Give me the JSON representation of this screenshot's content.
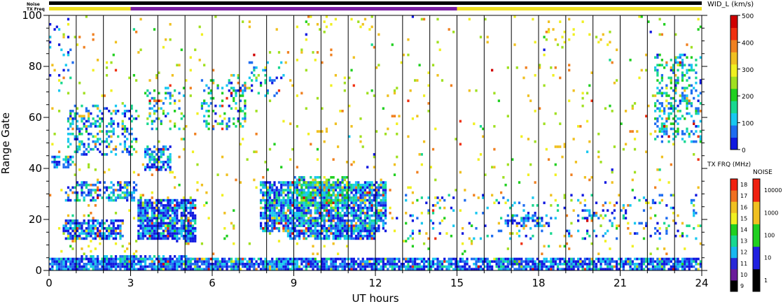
{
  "chart_data": {
    "type": "heatmap",
    "title": "",
    "xlabel": "UT hours",
    "ylabel": "Range Gate",
    "xlim": [
      0,
      24
    ],
    "ylim": [
      0,
      100
    ],
    "x_ticks": [
      0,
      3,
      6,
      9,
      12,
      15,
      18,
      21,
      24
    ],
    "y_ticks": [
      0,
      20,
      40,
      60,
      80,
      100
    ],
    "grid": "vertical lines each hour",
    "strip_labels": {
      "noise": "Noise",
      "txfreq": "TX Freq"
    },
    "tx_freq_strip": [
      {
        "start": 0,
        "end": 3,
        "color": "#f0e020"
      },
      {
        "start": 3,
        "end": 15,
        "color": "#7a1fa2"
      },
      {
        "start": 15,
        "end": 24,
        "color": "#f0e020"
      }
    ],
    "noise_strip_color": "#000000",
    "width_colorbar": {
      "title": "WID_L (km/s)",
      "ticks": [
        0,
        100,
        200,
        300,
        400,
        500
      ],
      "range": [
        0,
        500
      ],
      "colors": [
        "#1018e0",
        "#1e6cf0",
        "#18c8f0",
        "#18d890",
        "#20d020",
        "#a0e020",
        "#f0f020",
        "#f0c020",
        "#f08020",
        "#f03010",
        "#d00000"
      ]
    },
    "tx_freq_colorbar": {
      "title": "TX FRQ (MHz)",
      "ticks": [
        "9",
        "10",
        "11",
        "12",
        "13",
        "14",
        "15",
        "16",
        "17",
        "18"
      ],
      "colors": [
        "#000000",
        "#6a1b9a",
        "#2828d8",
        "#18b8f0",
        "#18d890",
        "#20d020",
        "#f0f020",
        "#f0c020",
        "#f07020",
        "#f02010"
      ]
    },
    "noise_colorbar": {
      "title": "NOISE",
      "ticks": [
        "1",
        "10",
        "100",
        "1000",
        "10000"
      ],
      "colors": [
        "#000000",
        "#2020e0",
        "#20d020",
        "#f0c020",
        "#f02010"
      ]
    },
    "scatter_regions": [
      {
        "x": [
          0,
          24
        ],
        "y": [
          0,
          5
        ],
        "level": 0.12,
        "density": 0.85
      },
      {
        "x": [
          1.2,
          5.2
        ],
        "y": [
          2,
          6
        ],
        "level": 0.18,
        "density": 0.5
      },
      {
        "x": [
          0.5,
          2.7
        ],
        "y": [
          12,
          20
        ],
        "level": 0.12,
        "density": 0.75
      },
      {
        "x": [
          3.3,
          5.4
        ],
        "y": [
          12,
          28
        ],
        "level": 0.12,
        "density": 0.85
      },
      {
        "x": [
          5.0,
          5.4
        ],
        "y": [
          11,
          17
        ],
        "level": 0.1,
        "density": 0.9
      },
      {
        "x": [
          0.6,
          3.2
        ],
        "y": [
          27,
          35
        ],
        "level": 0.18,
        "density": 0.45
      },
      {
        "x": [
          7.8,
          12.4
        ],
        "y": [
          15,
          35
        ],
        "level": 0.17,
        "density": 0.82
      },
      {
        "x": [
          8.8,
          12.0
        ],
        "y": [
          12,
          16
        ],
        "level": 0.12,
        "density": 0.7
      },
      {
        "x": [
          9.0,
          11.0
        ],
        "y": [
          26,
          37
        ],
        "level": 0.32,
        "density": 0.55
      },
      {
        "x": [
          0.1,
          0.9
        ],
        "y": [
          40,
          45
        ],
        "level": 0.15,
        "density": 0.55
      },
      {
        "x": [
          3.5,
          4.5
        ],
        "y": [
          39,
          49
        ],
        "level": 0.15,
        "density": 0.6
      },
      {
        "x": [
          0.7,
          3.2
        ],
        "y": [
          45,
          65
        ],
        "level": 0.2,
        "density": 0.3
      },
      {
        "x": [
          3.6,
          5.0
        ],
        "y": [
          55,
          72
        ],
        "level": 0.3,
        "density": 0.2
      },
      {
        "x": [
          5.6,
          7.2
        ],
        "y": [
          55,
          75
        ],
        "level": 0.25,
        "density": 0.25
      },
      {
        "x": [
          6.6,
          8.6
        ],
        "y": [
          68,
          82
        ],
        "level": 0.2,
        "density": 0.14
      },
      {
        "x": [
          22.3,
          24.0
        ],
        "y": [
          50,
          85
        ],
        "level": 0.25,
        "density": 0.3
      },
      {
        "x": [
          13.0,
          24.0
        ],
        "y": [
          12,
          30
        ],
        "level": 0.18,
        "density": 0.08
      },
      {
        "x": [
          16.8,
          18.4
        ],
        "y": [
          17,
          22
        ],
        "level": 0.12,
        "density": 0.45
      },
      {
        "x": [
          19.8,
          21.2
        ],
        "y": [
          20,
          24
        ],
        "level": 0.12,
        "density": 0.35
      },
      {
        "x": [
          0.0,
          24.0
        ],
        "y": [
          6,
          100
        ],
        "level": 0.6,
        "density": 0.025
      },
      {
        "x": [
          0.0,
          1.0
        ],
        "y": [
          70,
          100
        ],
        "level": 0.15,
        "density": 0.12
      }
    ]
  }
}
